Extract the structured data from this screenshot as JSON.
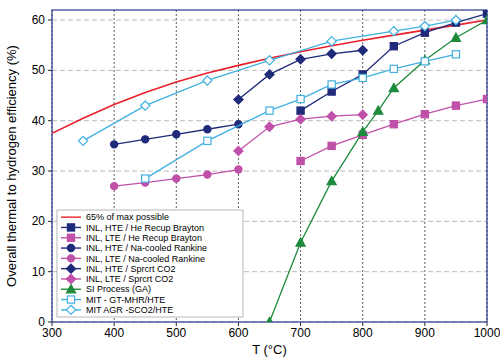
{
  "chart_data": {
    "type": "line",
    "x_label": "T (°C)",
    "y_label": "Overall thermal to hydrogen efficiency (%)",
    "xlim": [
      300,
      1000
    ],
    "xticks": [
      300,
      400,
      500,
      600,
      700,
      800,
      900,
      1000
    ],
    "ylim": [
      0,
      62
    ],
    "yticks": [
      0,
      10,
      20,
      30,
      40,
      50,
      60
    ],
    "grid": true,
    "legend": "lower left",
    "series": [
      {
        "name": "65% of max possible",
        "color": "#e8202a",
        "marker": "none",
        "line_style": "solid",
        "x": [
          300,
          350,
          400,
          450,
          500,
          550,
          600,
          650,
          700,
          750,
          800,
          850,
          900,
          950,
          1000
        ],
        "values": [
          37.5,
          40.5,
          43.2,
          45.6,
          47.7,
          49.5,
          51.0,
          52.4,
          53.7,
          54.9,
          56.0,
          57.0,
          58.0,
          59.0,
          60.0
        ]
      },
      {
        "name": "INL, HTE / He Recup Brayton",
        "color": "#1f2a7a",
        "marker": "square",
        "line_style": "solid",
        "x": [
          700,
          750,
          800,
          850,
          900,
          950,
          1000
        ],
        "values": [
          42.0,
          45.8,
          49.2,
          54.8,
          57.5,
          59.5,
          61.3
        ]
      },
      {
        "name": "INL, LTE / He Recup Brayton",
        "color": "#c050a8",
        "marker": "square",
        "line_style": "solid",
        "x": [
          700,
          750,
          800,
          850,
          900,
          950,
          1000
        ],
        "values": [
          32.0,
          35.0,
          37.2,
          39.3,
          41.3,
          43.0,
          44.3
        ]
      },
      {
        "name": "INL, HTE / Na-cooled Rankine",
        "color": "#1f2a7a",
        "marker": "circle",
        "line_style": "solid",
        "x": [
          400,
          450,
          500,
          550,
          600
        ],
        "values": [
          35.3,
          36.3,
          37.3,
          38.3,
          39.3
        ]
      },
      {
        "name": "INL, LTE / Na-cooled Rankine",
        "color": "#c050a8",
        "marker": "circle",
        "line_style": "solid",
        "x": [
          400,
          450,
          500,
          550,
          600
        ],
        "values": [
          27.0,
          27.7,
          28.5,
          29.3,
          30.3
        ]
      },
      {
        "name": "INL, HTE / Sprcrt CO2",
        "color": "#1f2a7a",
        "marker": "diamond",
        "line_style": "solid",
        "x": [
          600,
          650,
          700,
          750,
          800
        ],
        "values": [
          44.2,
          49.2,
          52.2,
          53.3,
          54.0
        ]
      },
      {
        "name": "INL, LTE / Sprcrt CO2",
        "color": "#c050a8",
        "marker": "diamond",
        "line_style": "solid",
        "x": [
          600,
          650,
          700,
          750,
          800
        ],
        "values": [
          34.0,
          38.8,
          40.3,
          40.9,
          41.2
        ]
      },
      {
        "name": "SI Process (GA)",
        "color": "#1e8a3c",
        "marker": "triangle",
        "line_style": "solid",
        "x": [
          650,
          700,
          750,
          800,
          825,
          850,
          900,
          950,
          1000
        ],
        "values": [
          0,
          15.8,
          28.0,
          37.8,
          42.0,
          46.5,
          52.0,
          56.5,
          60.0
        ]
      },
      {
        "name": "MIT - GT-MHR/HTE",
        "color": "#40b0e0",
        "marker": "square-open",
        "line_style": "solid",
        "x": [
          450,
          550,
          650,
          700,
          750,
          800,
          850,
          900,
          950
        ],
        "values": [
          28.5,
          36.0,
          42.0,
          44.3,
          47.2,
          48.5,
          50.3,
          51.8,
          53.2
        ]
      },
      {
        "name": "MIT AGR -SCO2/HTE",
        "color": "#40b0e0",
        "marker": "diamond-open",
        "line_style": "solid",
        "x": [
          350,
          450,
          550,
          650,
          750,
          850,
          900,
          950
        ],
        "values": [
          36.0,
          43.0,
          48.0,
          52.0,
          55.8,
          57.8,
          58.8,
          60.0
        ]
      }
    ]
  }
}
